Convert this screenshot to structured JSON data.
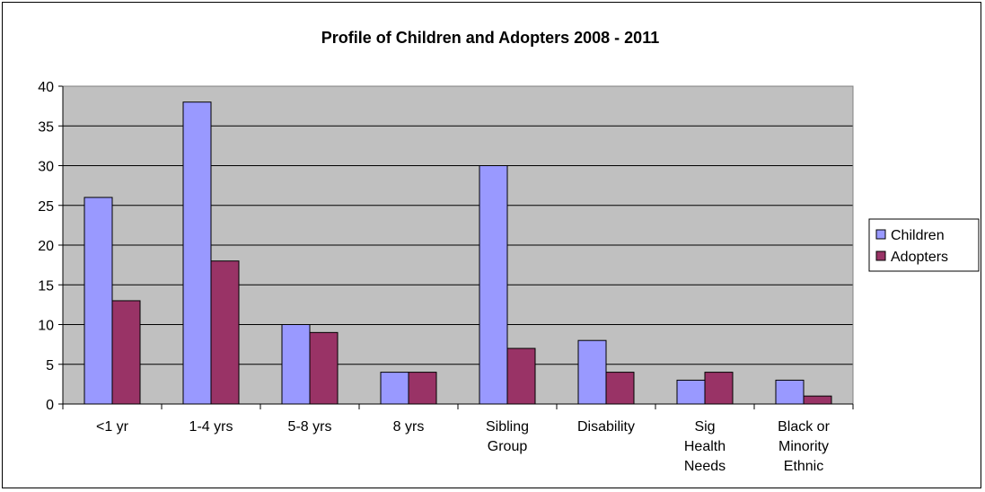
{
  "chart_data": {
    "type": "bar",
    "title": "Profile of Children and Adopters 2008 - 2011",
    "xlabel": "",
    "ylabel": "",
    "ylim": [
      0,
      40
    ],
    "yticks": [
      "0",
      "5",
      "10",
      "15",
      "20",
      "25",
      "30",
      "35",
      "40"
    ],
    "grid": true,
    "legend_position": "right",
    "categories": [
      [
        "<1 yr"
      ],
      [
        "1-4 yrs"
      ],
      [
        "5-8 yrs"
      ],
      [
        "8 yrs"
      ],
      [
        "Sibling",
        "Group"
      ],
      [
        "Disability"
      ],
      [
        "Sig",
        "Health",
        "Needs"
      ],
      [
        "Black or",
        "Minority",
        "Ethnic"
      ]
    ],
    "series": [
      {
        "name": "Children",
        "color": "#9999ff",
        "values": [
          26,
          38,
          10,
          4,
          30,
          8,
          3,
          3
        ]
      },
      {
        "name": "Adopters",
        "color": "#993366",
        "values": [
          13,
          18,
          9,
          4,
          7,
          4,
          4,
          1
        ]
      }
    ],
    "plot_background": "#c0c0c0"
  }
}
